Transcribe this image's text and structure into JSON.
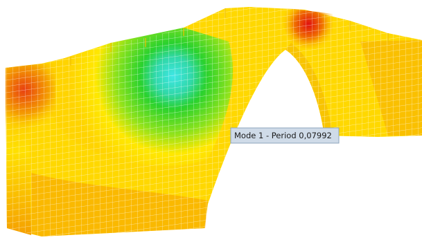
{
  "tooltip": {
    "text": "Mode 1 - Period 0,07992"
  }
}
